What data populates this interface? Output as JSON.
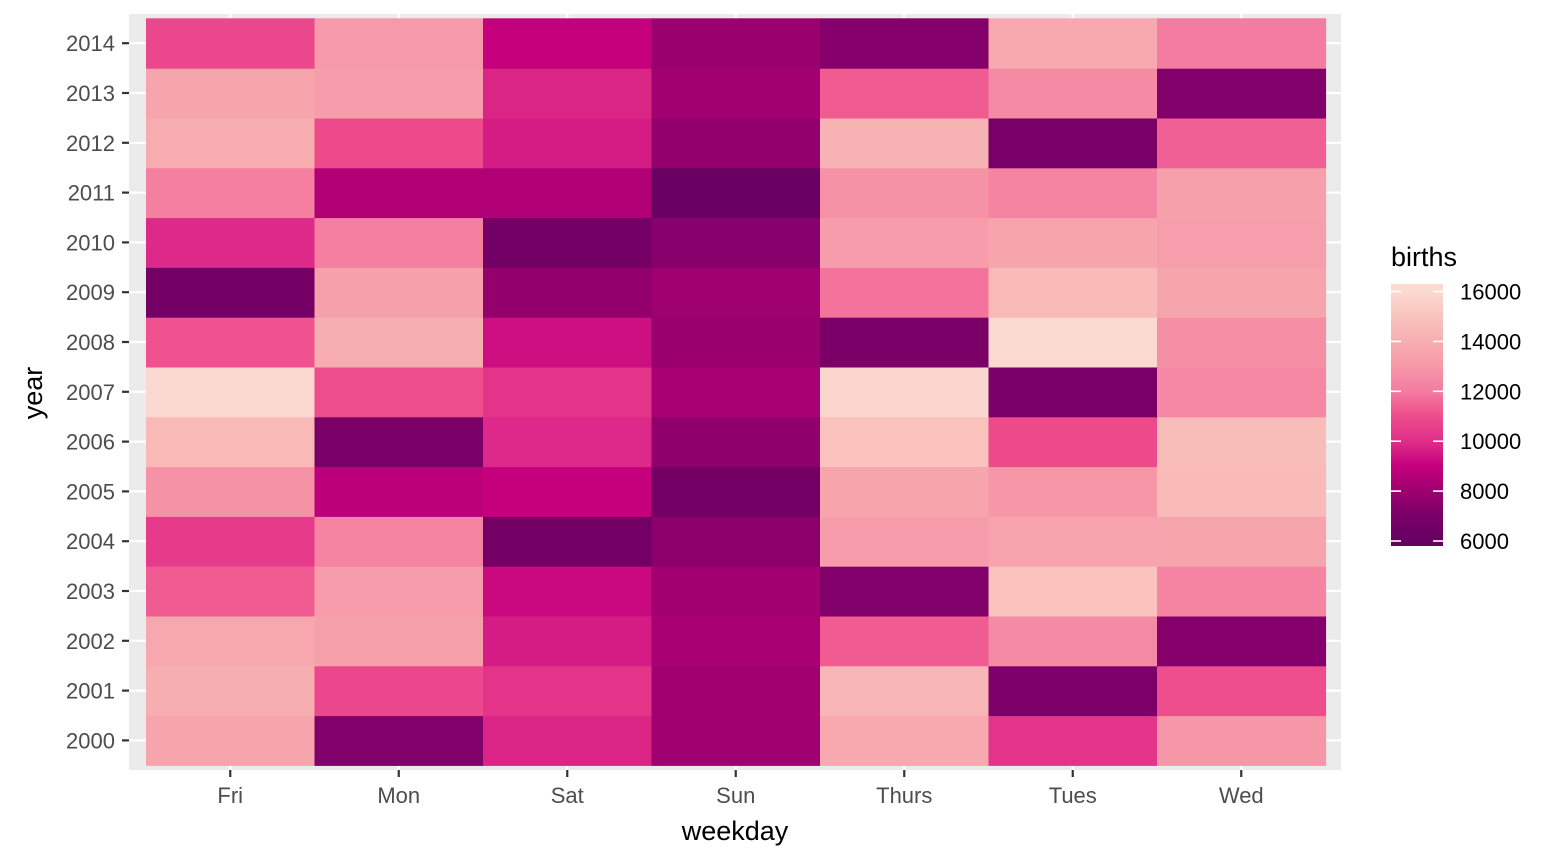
{
  "chart_data": {
    "type": "heatmap",
    "x_categories": [
      "Fri",
      "Mon",
      "Sat",
      "Sun",
      "Thurs",
      "Tues",
      "Wed"
    ],
    "y_categories": [
      "2000",
      "2001",
      "2002",
      "2003",
      "2004",
      "2005",
      "2006",
      "2007",
      "2008",
      "2009",
      "2010",
      "2011",
      "2012",
      "2013",
      "2014"
    ],
    "xlabel": "weekday",
    "ylabel": "year",
    "legend": {
      "title": "births",
      "placement": "right",
      "ticks": [
        "6000",
        "8000",
        "10000",
        "12000",
        "14000",
        "16000"
      ],
      "range": [
        5800,
        16300
      ]
    },
    "color_stops": [
      {
        "value": 6000,
        "color": "#650060"
      },
      {
        "value": 7000,
        "color": "#7a0068"
      },
      {
        "value": 8000,
        "color": "#9e006f"
      },
      {
        "value": 9000,
        "color": "#c4007d"
      },
      {
        "value": 10000,
        "color": "#e02e8a"
      },
      {
        "value": 11000,
        "color": "#ee4d8c"
      },
      {
        "value": 12000,
        "color": "#f47ca0"
      },
      {
        "value": 13000,
        "color": "#f697a8"
      },
      {
        "value": 14000,
        "color": "#f7aeb1"
      },
      {
        "value": 15000,
        "color": "#f9c4bd"
      },
      {
        "value": 16000,
        "color": "#fbdad2"
      }
    ],
    "values": [
      [
        13600,
        7200,
        9800,
        8000,
        13800,
        10200,
        13000
      ],
      [
        14000,
        10800,
        10200,
        8100,
        14300,
        7100,
        11000
      ],
      [
        13700,
        13400,
        9600,
        8300,
        11300,
        12500,
        7300
      ],
      [
        11300,
        13200,
        9200,
        8100,
        7200,
        14900,
        12300
      ],
      [
        10400,
        12300,
        6700,
        7500,
        13200,
        13500,
        13600
      ],
      [
        12800,
        8800,
        9000,
        6700,
        13600,
        13000,
        14600
      ],
      [
        14500,
        7000,
        9900,
        7600,
        14900,
        10900,
        14700
      ],
      [
        15900,
        11000,
        10200,
        8300,
        15800,
        7000,
        12400
      ],
      [
        11100,
        14000,
        9300,
        7900,
        7000,
        16000,
        12700
      ],
      [
        6700,
        13400,
        7700,
        8000,
        11800,
        14600,
        13600
      ],
      [
        9900,
        12100,
        6700,
        7400,
        13200,
        13600,
        13300
      ],
      [
        12100,
        8500,
        8500,
        6200,
        12800,
        12300,
        13400
      ],
      [
        13900,
        10900,
        9600,
        7700,
        14200,
        6900,
        11400
      ],
      [
        13600,
        13200,
        9800,
        8100,
        11300,
        12500,
        7200
      ],
      [
        10800,
        13100,
        9000,
        7900,
        7300,
        13800,
        12000
      ]
    ]
  }
}
